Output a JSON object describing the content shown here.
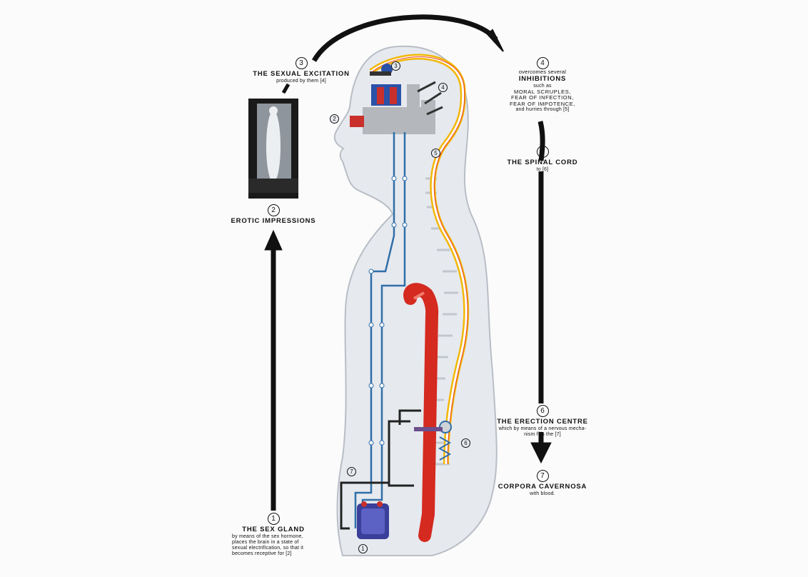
{
  "step1": {
    "num": "1",
    "title": "THE SEX GLAND",
    "text": [
      "by means of the sex hormone,",
      "places the brain in a state of",
      "sexual electrification, so that it",
      "becomes receptive for [2]"
    ]
  },
  "step2": {
    "num": "2",
    "title": "EROTIC IMPRESSIONS"
  },
  "step3": {
    "num": "3",
    "title": "THE SEXUAL EXCITATION",
    "text": "produced by them [4]"
  },
  "step4": {
    "num": "4",
    "intro": "overcomes several",
    "title": "INHIBITIONS",
    "such_as": "such as",
    "items": [
      "MORAL SCRUPLES,",
      "FEAR OF INFECTION,",
      "FEAR OF IMPOTENCE,"
    ],
    "text": "and hurries through [5]"
  },
  "step5": {
    "num": "5",
    "title": "THE SPINAL CORD",
    "text": "to [6]"
  },
  "step6": {
    "num": "6",
    "title": "THE ERECTION CENTRE",
    "text": [
      "which by means of a nervous mecha-",
      "nism fills the [7]"
    ]
  },
  "step7": {
    "num": "7",
    "title": "CORPORA CAVERNOSA",
    "text": "with blood."
  },
  "markers": [
    "1",
    "2",
    "3",
    "4",
    "5",
    "6",
    "7"
  ],
  "colors": {
    "arrow": "#111111",
    "body": "#e6e9ee",
    "spine_outer": "#f2b705",
    "spine_inner": "#e8442a",
    "nerve": "#2f6fa8",
    "artery": "#d42a1f",
    "gland": "#3a3f9a"
  }
}
